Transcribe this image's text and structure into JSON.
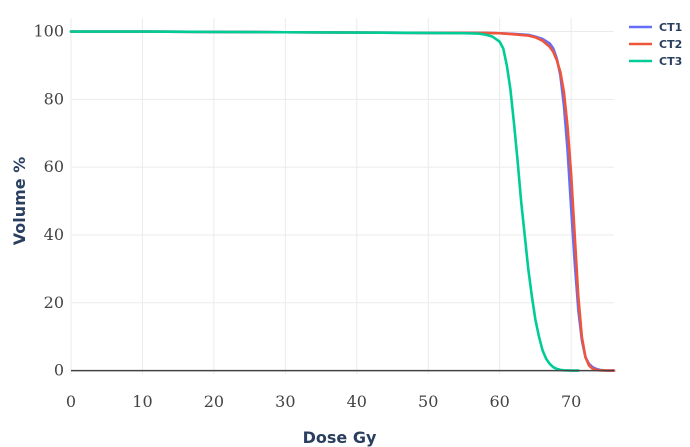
{
  "chart_data": {
    "type": "line",
    "xlabel": "Dose Gy",
    "ylabel": "Volume %",
    "xlim": [
      0,
      76
    ],
    "ylim": [
      -1,
      104
    ],
    "x_ticks": [
      0,
      10,
      20,
      30,
      40,
      50,
      60,
      70
    ],
    "y_ticks": [
      0,
      20,
      40,
      60,
      80,
      100
    ],
    "grid": true,
    "legend_position": "top-right",
    "series": [
      {
        "name": "CT1",
        "color": "#636efa",
        "x": [
          0,
          10,
          20,
          30,
          40,
          50,
          55,
          58,
          60,
          62,
          64,
          65,
          66,
          67,
          67.5,
          68,
          68.5,
          69,
          69.5,
          70,
          70.5,
          71,
          71.5,
          72,
          72.5,
          73,
          73.5,
          74,
          75,
          76
        ],
        "y": [
          100,
          100,
          99.9,
          99.8,
          99.7,
          99.6,
          99.6,
          99.6,
          99.5,
          99.3,
          99.0,
          98.5,
          97.8,
          96.5,
          95,
          92,
          87,
          78,
          65,
          48,
          32,
          18,
          9,
          4,
          2,
          1,
          0.5,
          0.2,
          0,
          0
        ]
      },
      {
        "name": "CT2",
        "color": "#ef553b",
        "x": [
          0,
          10,
          20,
          30,
          40,
          50,
          55,
          58,
          60,
          62,
          64,
          65,
          66,
          67,
          67.5,
          68,
          68.5,
          69,
          69.5,
          70,
          70.5,
          71,
          71.5,
          72,
          72.5,
          73,
          73.5,
          74,
          75,
          76
        ],
        "y": [
          100,
          100,
          99.9,
          99.8,
          99.7,
          99.6,
          99.6,
          99.6,
          99.5,
          99.2,
          98.8,
          98.3,
          97.3,
          95.5,
          94,
          91.5,
          88,
          82,
          72,
          58,
          40,
          22,
          10,
          4,
          1.5,
          0.6,
          0.2,
          0.1,
          0,
          0
        ]
      },
      {
        "name": "CT3",
        "color": "#00cc96",
        "x": [
          0,
          10,
          20,
          30,
          40,
          50,
          55,
          57,
          58,
          59,
          60,
          60.5,
          61,
          61.5,
          62,
          62.5,
          63,
          63.5,
          64,
          64.5,
          65,
          65.5,
          66,
          66.5,
          67,
          67.5,
          68,
          68.5,
          69,
          70,
          71
        ],
        "y": [
          100,
          100,
          99.9,
          99.8,
          99.7,
          99.6,
          99.5,
          99.4,
          99.1,
          98.5,
          97.0,
          95.0,
          90,
          83,
          73,
          62,
          50,
          40,
          30,
          22,
          15,
          10,
          6,
          3.5,
          2,
          1,
          0.5,
          0.2,
          0.1,
          0,
          0
        ]
      }
    ]
  }
}
